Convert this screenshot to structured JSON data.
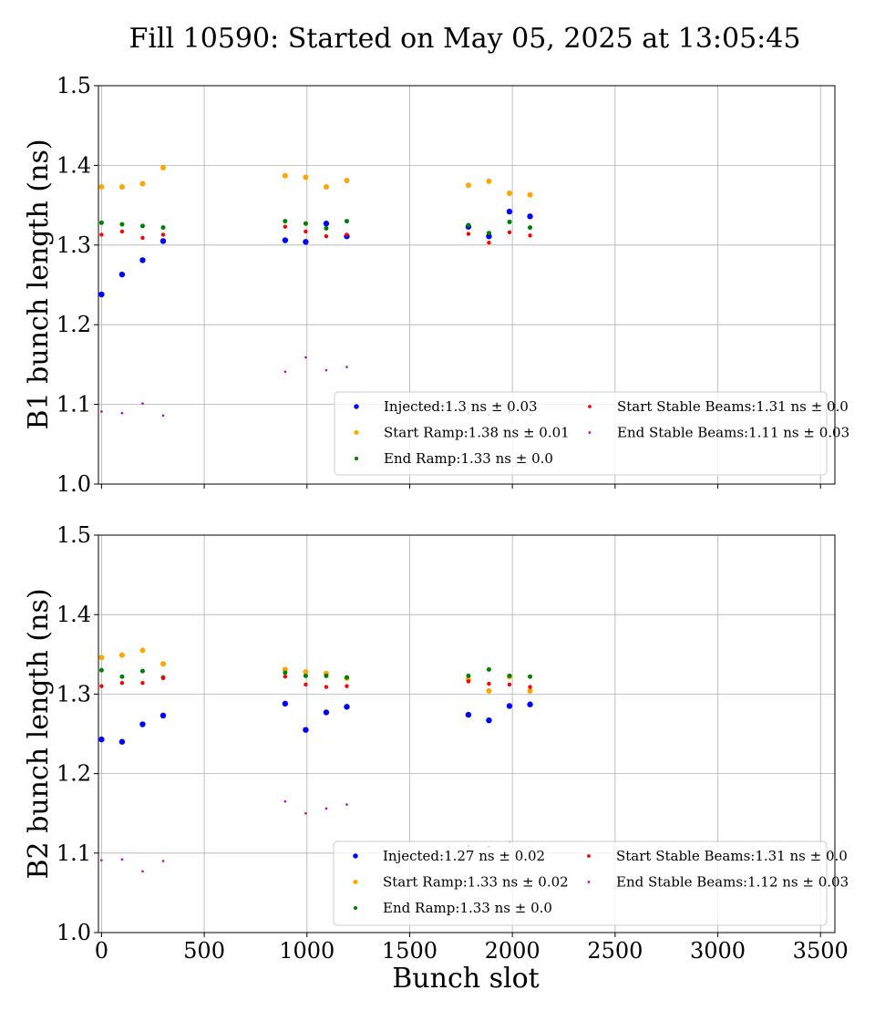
{
  "figure": {
    "title": "Fill 10590: Started on May 05, 2025 at 13:05:45"
  },
  "chart_data": [
    {
      "type": "scatter",
      "title": "",
      "xlabel": "",
      "ylabel": "B1 bunch length (ns)",
      "xlim": [
        -15,
        3570
      ],
      "ylim": [
        1.0,
        1.5
      ],
      "xticks": [
        0,
        500,
        1000,
        1500,
        2000,
        2500,
        3000,
        3500
      ],
      "yticks": [
        "1.0",
        "1.1",
        "1.2",
        "1.3",
        "1.4",
        "1.5"
      ],
      "show_x_tick_labels": false,
      "grid": true,
      "legend_position": "lower-right",
      "series": [
        {
          "name": "Injected:1.3 ns ± 0.03",
          "color": "#0000ff",
          "size": 3.2,
          "x": [
            0,
            100,
            200,
            300,
            894,
            994,
            1094,
            1194,
            1786,
            1886,
            1986,
            2086
          ],
          "y": [
            1.238,
            1.263,
            1.281,
            1.305,
            1.306,
            1.304,
            1.327,
            1.311,
            1.323,
            1.311,
            1.342,
            1.336
          ]
        },
        {
          "name": "Start Ramp:1.38 ns ± 0.01",
          "color": "#ffa500",
          "size": 3.0,
          "x": [
            0,
            100,
            200,
            300,
            894,
            994,
            1094,
            1194,
            1786,
            1886,
            1986,
            2086
          ],
          "y": [
            1.373,
            1.373,
            1.377,
            1.397,
            1.387,
            1.385,
            1.373,
            1.381,
            1.375,
            1.38,
            1.365,
            1.363
          ]
        },
        {
          "name": "End Ramp:1.33 ns ± 0.0",
          "color": "#008000",
          "size": 2.5,
          "x": [
            0,
            100,
            200,
            300,
            894,
            994,
            1094,
            1194,
            1786,
            1886,
            1986,
            2086
          ],
          "y": [
            1.328,
            1.326,
            1.324,
            1.322,
            1.33,
            1.327,
            1.321,
            1.33,
            1.325,
            1.315,
            1.329,
            1.322
          ]
        },
        {
          "name": "Start Stable Beams:1.31 ns ± 0.0",
          "color": "#ff0000",
          "size": 2.2,
          "x": [
            0,
            100,
            200,
            300,
            894,
            994,
            1094,
            1194,
            1786,
            1886,
            1986,
            2086
          ],
          "y": [
            1.313,
            1.317,
            1.309,
            1.313,
            1.323,
            1.317,
            1.311,
            1.313,
            1.314,
            1.303,
            1.316,
            1.312
          ]
        },
        {
          "name": "End Stable Beams:1.11 ns ± 0.03",
          "color": "#bf00bf",
          "size": 1.3,
          "x": [
            0,
            100,
            200,
            300,
            894,
            994,
            1094,
            1194,
            1786,
            1886,
            1986,
            2086
          ],
          "y": [
            1.091,
            1.089,
            1.101,
            1.086,
            1.141,
            1.159,
            1.143,
            1.147,
            1.09,
            1.087,
            1.09,
            1.087
          ]
        }
      ]
    },
    {
      "type": "scatter",
      "title": "",
      "xlabel": "Bunch slot",
      "ylabel": "B2 bunch length (ns)",
      "xlim": [
        -15,
        3570
      ],
      "ylim": [
        1.0,
        1.5
      ],
      "xticks": [
        0,
        500,
        1000,
        1500,
        2000,
        2500,
        3000,
        3500
      ],
      "yticks": [
        "1.0",
        "1.1",
        "1.2",
        "1.3",
        "1.4",
        "1.5"
      ],
      "show_x_tick_labels": true,
      "grid": true,
      "legend_position": "lower-right",
      "series": [
        {
          "name": "Injected:1.27 ns ± 0.02",
          "color": "#0000ff",
          "size": 3.2,
          "x": [
            0,
            100,
            200,
            300,
            894,
            994,
            1094,
            1194,
            1786,
            1886,
            1986,
            2086
          ],
          "y": [
            1.243,
            1.24,
            1.262,
            1.273,
            1.288,
            1.255,
            1.277,
            1.284,
            1.274,
            1.267,
            1.285,
            1.287
          ]
        },
        {
          "name": "Start Ramp:1.33 ns ± 0.02",
          "color": "#ffa500",
          "size": 3.0,
          "x": [
            0,
            100,
            200,
            300,
            894,
            994,
            1094,
            1194,
            1786,
            1886,
            1986,
            2086
          ],
          "y": [
            1.346,
            1.349,
            1.355,
            1.338,
            1.331,
            1.328,
            1.326,
            1.32,
            1.318,
            1.304,
            1.322,
            1.304
          ]
        },
        {
          "name": "End Ramp:1.33 ns ± 0.0",
          "color": "#008000",
          "size": 2.5,
          "x": [
            0,
            100,
            200,
            300,
            894,
            994,
            1094,
            1194,
            1786,
            1886,
            1986,
            2086
          ],
          "y": [
            1.33,
            1.322,
            1.329,
            1.321,
            1.327,
            1.323,
            1.323,
            1.321,
            1.323,
            1.331,
            1.323,
            1.322
          ]
        },
        {
          "name": "Start Stable Beams:1.31 ns ± 0.0",
          "color": "#ff0000",
          "size": 2.2,
          "x": [
            0,
            100,
            200,
            300,
            894,
            994,
            1094,
            1194,
            1786,
            1886,
            1986,
            2086
          ],
          "y": [
            1.31,
            1.314,
            1.314,
            1.32,
            1.322,
            1.312,
            1.309,
            1.31,
            1.316,
            1.313,
            1.312,
            1.309
          ]
        },
        {
          "name": "End Stable Beams:1.12 ns ± 0.03",
          "color": "#bf00bf",
          "size": 1.3,
          "x": [
            0,
            100,
            200,
            300,
            894,
            994,
            1094,
            1194,
            1786,
            1886,
            1986,
            2086
          ],
          "y": [
            1.091,
            1.092,
            1.077,
            1.09,
            1.165,
            1.15,
            1.156,
            1.161,
            1.109,
            1.108,
            1.114,
            1.101
          ]
        }
      ]
    }
  ]
}
